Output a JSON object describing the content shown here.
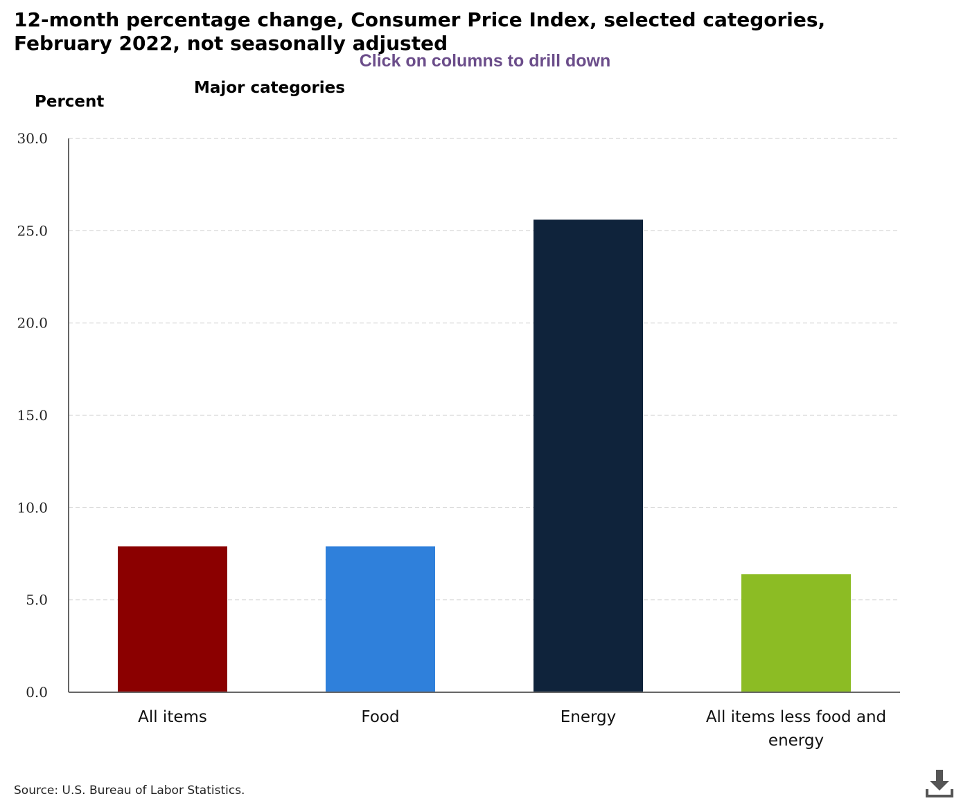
{
  "title": "12-month percentage change, Consumer Price Index, selected categories, February 2022, not seasonally adjusted",
  "drilldown_hint": "Click on columns to drill down",
  "source": "Source: U.S. Bureau of Labor Statistics.",
  "icons": {
    "download": "download-icon"
  },
  "chart_data": {
    "type": "bar",
    "title": "12-month percentage change, Consumer Price Index, selected categories, February 2022, not seasonally adjusted",
    "subtitle": "Major categories",
    "ylabel": "Percent",
    "xlabel": "",
    "ylim": [
      0,
      30
    ],
    "yticks": [
      0,
      5,
      10,
      15,
      20,
      25,
      30
    ],
    "ytick_labels": [
      "0.0",
      "5.0",
      "10.0",
      "15.0",
      "20.0",
      "25.0",
      "30.0"
    ],
    "grid": true,
    "categories": [
      "All items",
      "Food",
      "Energy",
      "All items less food and energy"
    ],
    "category_lines": [
      [
        "All items"
      ],
      [
        "Food"
      ],
      [
        "Energy"
      ],
      [
        "All items less food and",
        "energy"
      ]
    ],
    "values": [
      7.9,
      7.9,
      25.6,
      6.4
    ],
    "colors": [
      "#8b0000",
      "#2f80db",
      "#0f233b",
      "#8cbc24"
    ]
  }
}
